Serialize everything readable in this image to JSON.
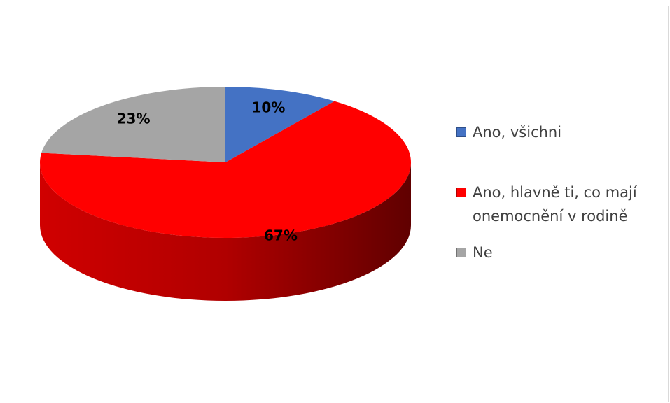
{
  "chart_data": {
    "type": "pie",
    "categories": [
      "Ano, všichni",
      "Ano, hlavně ti, co mají onemocnění v rodině",
      "Ne"
    ],
    "values": [
      10,
      67,
      23
    ],
    "value_labels": [
      "10%",
      "67%",
      "23%"
    ],
    "colors": [
      "#4472c4",
      "#ff0000",
      "#a5a5a5"
    ],
    "legend": "right"
  }
}
